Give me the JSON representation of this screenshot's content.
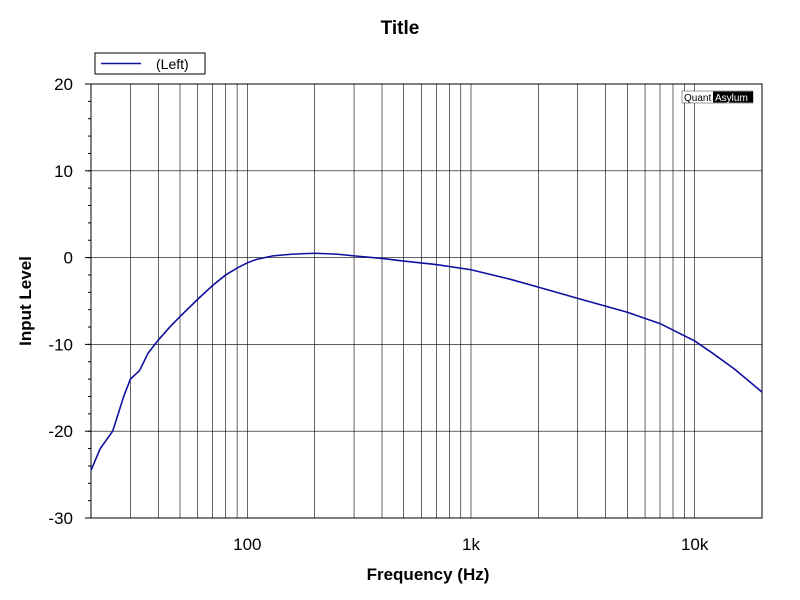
{
  "chart_data": {
    "type": "line",
    "title": "Title",
    "xlabel": "Frequency (Hz)",
    "ylabel": "Input Level",
    "x_scale": "log",
    "xlim": [
      20,
      20000
    ],
    "ylim": [
      -30,
      20
    ],
    "x_tick_labels": [
      {
        "value": 100,
        "label": "100"
      },
      {
        "value": 1000,
        "label": "1k"
      },
      {
        "value": 10000,
        "label": "10k"
      }
    ],
    "y_ticks": [
      20,
      10,
      0,
      -10,
      -20,
      -30
    ],
    "grid": true,
    "legend_position": "top-left",
    "brand": {
      "part1": "Quant",
      "part2": "Asylum"
    },
    "series": [
      {
        "name": "(Left)",
        "color": "#1010a0",
        "x": [
          20,
          22,
          25,
          28,
          30,
          33,
          36,
          40,
          45,
          50,
          60,
          70,
          80,
          90,
          100,
          110,
          130,
          160,
          200,
          250,
          300,
          400,
          500,
          700,
          1000,
          1500,
          2000,
          3000,
          5000,
          7000,
          10000,
          12000,
          15000,
          18000,
          20000
        ],
        "y": [
          -24.5,
          -22,
          -20,
          -16,
          -14,
          -13,
          -11,
          -9.5,
          -8,
          -6.8,
          -4.8,
          -3.2,
          -2,
          -1.2,
          -0.6,
          -0.2,
          0.2,
          0.4,
          0.5,
          0.4,
          0.2,
          -0.1,
          -0.4,
          -0.8,
          -1.4,
          -2.5,
          -3.4,
          -4.7,
          -6.3,
          -7.6,
          -9.6,
          -11,
          -12.8,
          -14.5,
          -15.5
        ]
      }
    ]
  }
}
